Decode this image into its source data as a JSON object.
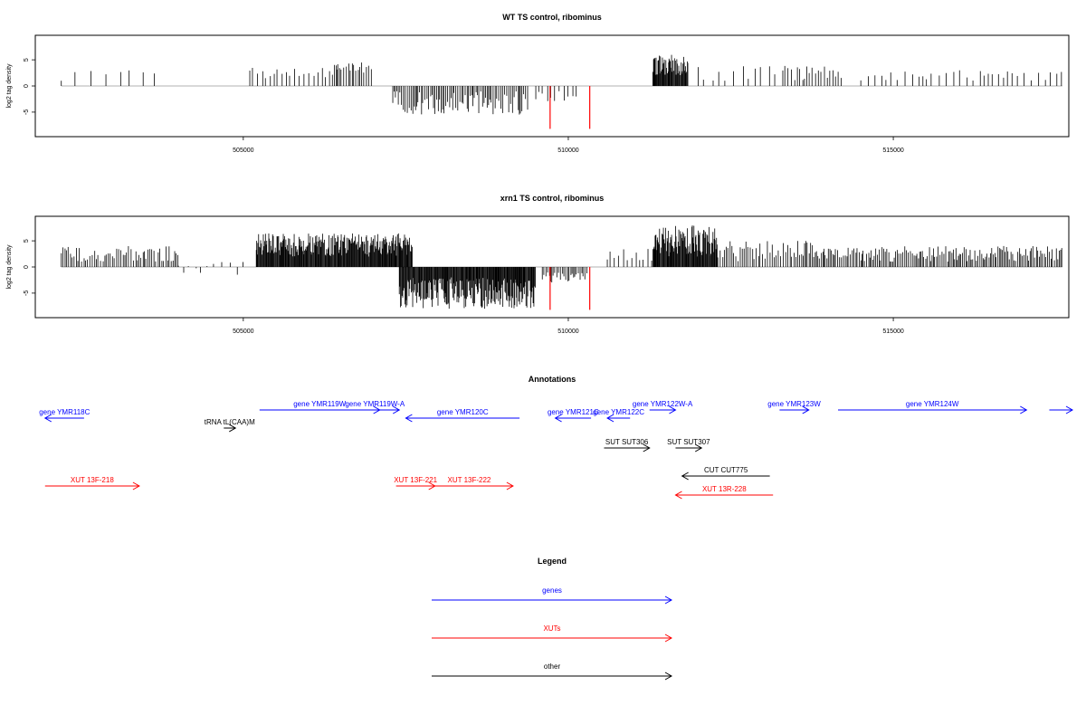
{
  "colors": {
    "gene": "#0000ff",
    "xut": "#ff0000",
    "other": "#000000",
    "zero_line": "#999999",
    "highlight": "#ff0000"
  },
  "x_range": [
    501800,
    517700
  ],
  "chart_data": [
    {
      "type": "bar",
      "title": "WT TS control, ribominus",
      "ylabel": "log2 tag density",
      "xlabel": "",
      "xlim": [
        501800,
        517700
      ],
      "ylim": [
        -9,
        9
      ],
      "x_ticks": [
        505000,
        510000,
        515000
      ],
      "y_ticks": [
        -5,
        0,
        5
      ],
      "grid": false,
      "dense_regions": [
        {
          "start": 502200,
          "end": 503700,
          "step": 180,
          "min": 1,
          "max": 3
        },
        {
          "start": 505100,
          "end": 506500,
          "step": 60,
          "min": 1.5,
          "max": 3.5
        },
        {
          "start": 506400,
          "end": 507000,
          "step": 30,
          "min": 2.5,
          "max": 4.5
        },
        {
          "start": 507300,
          "end": 509400,
          "step": 25,
          "min": -5.5,
          "max": -1
        },
        {
          "start": 509500,
          "end": 510200,
          "step": 70,
          "min": -3,
          "max": -1
        },
        {
          "start": 511300,
          "end": 511850,
          "step": 10,
          "min": 2,
          "max": 6
        },
        {
          "start": 512000,
          "end": 513300,
          "step": 120,
          "min": 1,
          "max": 4
        },
        {
          "start": 513300,
          "end": 514200,
          "step": 40,
          "min": 1,
          "max": 4
        },
        {
          "start": 514500,
          "end": 517600,
          "step": 90,
          "min": 1,
          "max": 3
        }
      ],
      "highlight_bars": [
        {
          "x": 509720,
          "y": -8.2
        },
        {
          "x": 510330,
          "y": -8.2
        }
      ]
    },
    {
      "type": "bar",
      "title": "xrn1 TS control, ribominus",
      "ylabel": "log2 tag density",
      "xlabel": "",
      "xlim": [
        501800,
        517700
      ],
      "ylim": [
        -9,
        9
      ],
      "x_ticks": [
        505000,
        510000,
        515000
      ],
      "y_ticks": [
        -5,
        0,
        5
      ],
      "grid": false,
      "dense_regions": [
        {
          "start": 502200,
          "end": 504000,
          "step": 30,
          "min": 1,
          "max": 4
        },
        {
          "start": 504000,
          "end": 505000,
          "step": 100,
          "min": -2,
          "max": 1
        },
        {
          "start": 505200,
          "end": 507600,
          "step": 10,
          "min": 2,
          "max": 6.5
        },
        {
          "start": 507400,
          "end": 509500,
          "step": 10,
          "min": -8,
          "max": -2
        },
        {
          "start": 509600,
          "end": 510300,
          "step": 25,
          "min": -3,
          "max": -1
        },
        {
          "start": 510600,
          "end": 511300,
          "step": 60,
          "min": 1,
          "max": 3.5
        },
        {
          "start": 511300,
          "end": 512300,
          "step": 10,
          "min": 2,
          "max": 8
        },
        {
          "start": 512300,
          "end": 513800,
          "step": 30,
          "min": 1,
          "max": 5
        },
        {
          "start": 513800,
          "end": 517600,
          "step": 25,
          "min": 1,
          "max": 4
        }
      ],
      "highlight_bars": [
        {
          "x": 509720,
          "y": -8.2
        },
        {
          "x": 510330,
          "y": -8.2
        }
      ]
    }
  ],
  "annotations": {
    "title": "Annotations",
    "features": [
      {
        "label": "gene YMR118C",
        "type": "gene",
        "start": 502550,
        "end": 501950,
        "row": 1
      },
      {
        "label": "tRNA tL(CAA)M",
        "type": "other",
        "start": 504700,
        "end": 504880,
        "row": 2
      },
      {
        "label": "gene YMR119W",
        "type": "gene",
        "start": 505250,
        "end": 507100,
        "row": 0
      },
      {
        "label": "gene YMR119W-A",
        "type": "gene",
        "start": 506650,
        "end": 507400,
        "row": 0
      },
      {
        "label": "gene YMR120C",
        "type": "gene",
        "start": 509250,
        "end": 507500,
        "row": 1
      },
      {
        "label": "gene YMR121C",
        "type": "gene",
        "start": 510350,
        "end": 509800,
        "row": 1
      },
      {
        "label": "gene YMR122C",
        "type": "gene",
        "start": 510950,
        "end": 510600,
        "row": 1
      },
      {
        "label": "gene YMR122W-A",
        "type": "gene",
        "start": 511250,
        "end": 511650,
        "row": 0
      },
      {
        "label": "gene YMR123W",
        "type": "gene",
        "start": 513250,
        "end": 513700,
        "row": 0
      },
      {
        "label": "gene YMR124W",
        "type": "gene",
        "start": 514150,
        "end": 517050,
        "row": 0
      },
      {
        "label": "",
        "type": "gene",
        "start": 517400,
        "end": 518500,
        "row": 0
      },
      {
        "label": "SUT SUT306",
        "type": "other",
        "start": 510550,
        "end": 511250,
        "row": 3
      },
      {
        "label": "SUT SUT307",
        "type": "other",
        "start": 511650,
        "end": 512050,
        "row": 3
      },
      {
        "label": "CUT CUT775",
        "type": "other",
        "start": 513100,
        "end": 511750,
        "row": 4
      },
      {
        "label": "XUT 13F-218",
        "type": "xut",
        "start": 501950,
        "end": 503400,
        "row": 5
      },
      {
        "label": "XUT 13F-221",
        "type": "xut",
        "start": 507350,
        "end": 507950,
        "row": 5
      },
      {
        "label": "XUT 13F-222",
        "type": "xut",
        "start": 507800,
        "end": 509150,
        "row": 5
      },
      {
        "label": "XUT 13R-228",
        "type": "xut",
        "start": 513150,
        "end": 511650,
        "row": 6
      }
    ]
  },
  "legend": {
    "title": "Legend",
    "items": [
      {
        "label": "genes",
        "type": "gene"
      },
      {
        "label": "XUTs",
        "type": "xut"
      },
      {
        "label": "other",
        "type": "other"
      }
    ]
  }
}
